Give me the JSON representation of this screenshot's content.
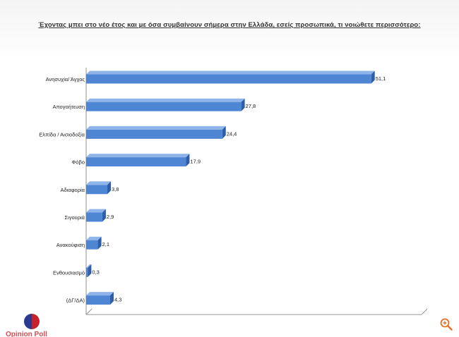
{
  "title": "Έχοντας μπει στο νέο έτος και με  όσα συμβαίνουν σήμερα στην Ελλάδα, εσείς προσωπικά, τι νοιώθετε περισσότερο:",
  "logo_text": "Opinion Poll",
  "colors": {
    "bar": "#4f86d4",
    "bar_top": "#8fb4ea",
    "bar_side": "#2e5ea8",
    "axis": "#777777"
  },
  "icons": {
    "zoom": "zoom-in-icon",
    "logo": "logo-icon"
  },
  "chart_data": {
    "type": "bar",
    "orientation": "horizontal",
    "title": "Έχοντας μπει στο νέο έτος και με  όσα συμβαίνουν σήμερα στην Ελλάδα, εσείς προσωπικά, τι νοιώθετε περισσότερο:",
    "categories": [
      "Ανησυχία/ Άγχος",
      "Απογοήτευση",
      "Ελπίδα / Αισιοδοξία",
      "Φόβο",
      "Αδιαφορία",
      "Σιγουριά",
      "Ανακούφιση",
      "Ενθουσιασμό",
      "(ΔΓ/ΔΑ)"
    ],
    "values": [
      51.1,
      27.8,
      24.4,
      17.9,
      3.8,
      2.9,
      2.1,
      0.3,
      4.3
    ],
    "value_labels": [
      "51,1",
      "27,8",
      "24,4",
      "17,9",
      "3,8",
      "2,9",
      "2,1",
      "0,3",
      "4,3"
    ],
    "xlim": [
      0,
      55
    ],
    "grid": false,
    "legend": "none"
  }
}
